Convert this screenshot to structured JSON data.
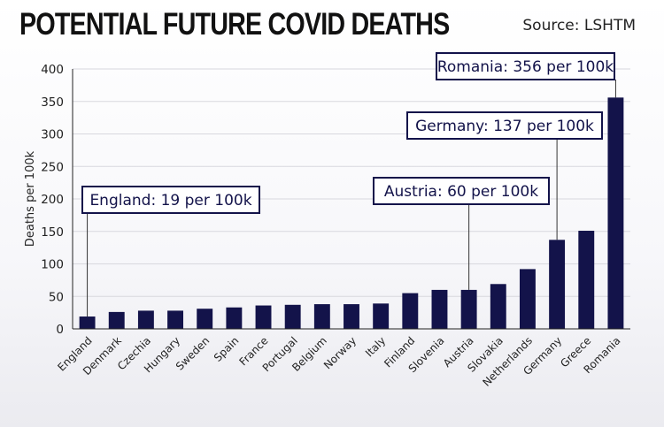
{
  "header": {
    "title": "POTENTIAL FUTURE COVID DEATHS",
    "source": "Source: LSHTM"
  },
  "colors": {
    "bar": "#13134a",
    "axis": "#222222",
    "grid": "#d8d8de",
    "callout_border": "#13134a"
  },
  "chart_data": {
    "type": "bar",
    "title": "POTENTIAL FUTURE COVID DEATHS",
    "xlabel": "",
    "ylabel": "Deaths per 100k",
    "ylim": [
      0,
      400
    ],
    "yticks": [
      0,
      50,
      100,
      150,
      200,
      250,
      300,
      350,
      400
    ],
    "grid": true,
    "categories": [
      "England",
      "Denmark",
      "Czechia",
      "Hungary",
      "Sweden",
      "Spain",
      "France",
      "Portugal",
      "Belgium",
      "Norway",
      "Italy",
      "Finland",
      "Slovenia",
      "Austria",
      "Slovakia",
      "Netherlands",
      "Germany",
      "Greece",
      "Romania"
    ],
    "values": [
      19,
      26,
      28,
      28,
      31,
      33,
      36,
      37,
      38,
      38,
      39,
      55,
      60,
      60,
      69,
      92,
      137,
      151,
      356
    ],
    "annotations": [
      {
        "category": "England",
        "text": "England: 19 per 100k"
      },
      {
        "category": "Austria",
        "text": "Austria: 60 per 100k"
      },
      {
        "category": "Germany",
        "text": "Germany: 137 per 100k"
      },
      {
        "category": "Romania",
        "text": "Romania: 356 per 100k"
      }
    ]
  }
}
